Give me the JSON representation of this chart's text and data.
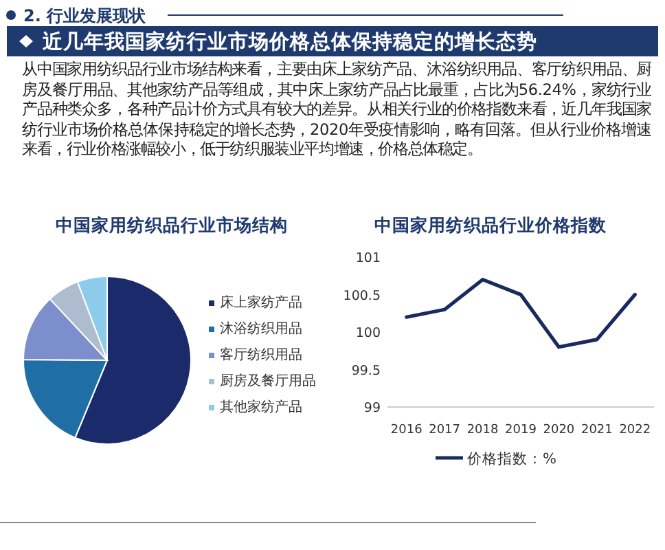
{
  "chart_data": [
    {
      "type": "other",
      "title": "近几年我国家纺行业市场价格总体保持稳定的增长态势",
      "annotations": [
        "2. 行业发展现状",
        "从中国家用纺织品行业市场结构来看，主要由床上家纺产品、沐浴纺织用品、客厅纺织用品、厨房及餐厅用品、其他家纺产品等组成，其中床上家纺产品占比最重，占比为56.24%，家纺行业产品种类众多，各种产品计价方式具有较大的差异。从相关行业的价格指数来看，近几年我国家纺行业市场价格总体保持稳定的增长态势，2020年受疫情影响，略有回落。但从行业价格增速来看，行业价格涨幅较小，低于纺织服装业平均增速，价格总体稳定。"
      ]
    },
    {
      "type": "pie",
      "title": "中国家用纺织品行业市场结构",
      "categories": [
        "床上家纺产品",
        "沐浴纺织用品",
        "客厅纺织用品",
        "厨房及餐厅用品",
        "其他家纺产品"
      ],
      "values": [
        56.24,
        18.9,
        12.9,
        6.2,
        5.76
      ],
      "colors": [
        "#1b2a6b",
        "#1f6fa6",
        "#7c8fcc",
        "#aebcd0",
        "#8ccbea"
      ],
      "legend": "right"
    },
    {
      "type": "line",
      "title": "中国家用纺织品行业价格指数",
      "categories": [
        "2016",
        "2017",
        "2018",
        "2019",
        "2020",
        "2021",
        "2022"
      ],
      "series": [
        {
          "name": "价格指数：%",
          "color": "#1b2a5e",
          "values": [
            100.2,
            100.3,
            100.7,
            100.5,
            99.8,
            99.9,
            100.5
          ]
        }
      ],
      "ylim": [
        99,
        101
      ],
      "yticks": [
        99,
        99.5,
        100,
        100.5,
        101
      ],
      "legend": "bottom",
      "marker": "none",
      "line_style": "solid"
    }
  ]
}
